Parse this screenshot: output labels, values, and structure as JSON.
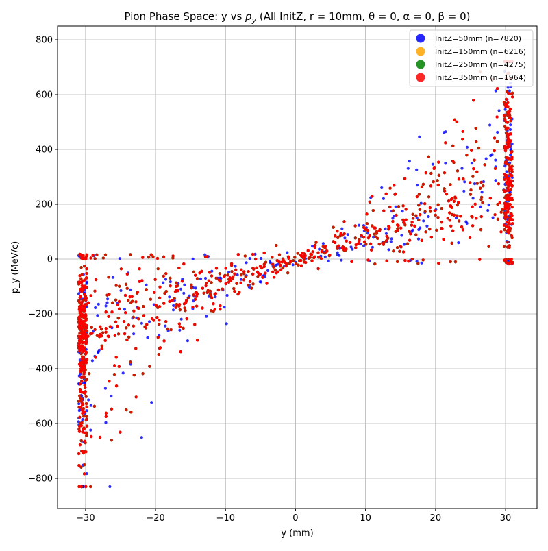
{
  "chart_data": {
    "type": "scatter",
    "title": "Pion Phase Space: y vs p_y (All InitZ, r = 10mm, θ = 0, α = 0, β = 0)",
    "title_parts": {
      "prefix": "Pion Phase Space: y vs ",
      "p": "p",
      "sub": "y",
      "suffix": " (All InitZ, r = 10mm, θ = 0, α = 0, β = 0)"
    },
    "xlabel": "y (mm)",
    "ylabel": "p_y (MeV/c)",
    "xlim": [
      -34,
      34.5
    ],
    "ylim": [
      -910,
      850
    ],
    "xticks": [
      -30,
      -20,
      -10,
      0,
      10,
      20,
      30
    ],
    "yticks": [
      -800,
      -600,
      -400,
      -200,
      0,
      200,
      400,
      600,
      800
    ],
    "xtick_labels": [
      "−30",
      "−20",
      "−10",
      "0",
      "10",
      "20",
      "30"
    ],
    "ytick_labels": [
      "−800",
      "−600",
      "−400",
      "−200",
      "0",
      "200",
      "400",
      "600",
      "800"
    ],
    "grid": true,
    "legend_position": "top-right",
    "series": [
      {
        "name": "InitZ=50mm (n=7820)",
        "color": "#0000ff",
        "n": 7820
      },
      {
        "name": "InitZ=150mm (n=6216)",
        "color": "#ffa500",
        "n": 6216
      },
      {
        "name": "InitZ=250mm (n=4275)",
        "color": "#008000",
        "n": 4275
      },
      {
        "name": "InitZ=350mm (n=1964)",
        "color": "#ff0000",
        "n": 1964
      }
    ],
    "distribution": {
      "y_range": [
        -31,
        31
      ],
      "band": "anti-correlated tails: at y = -31 p_y spans about -830 to 0; at y = +31 p_y spans about 0 to 720; near y = 0 p_y clusters around 0 (about -80 to 100)"
    }
  }
}
